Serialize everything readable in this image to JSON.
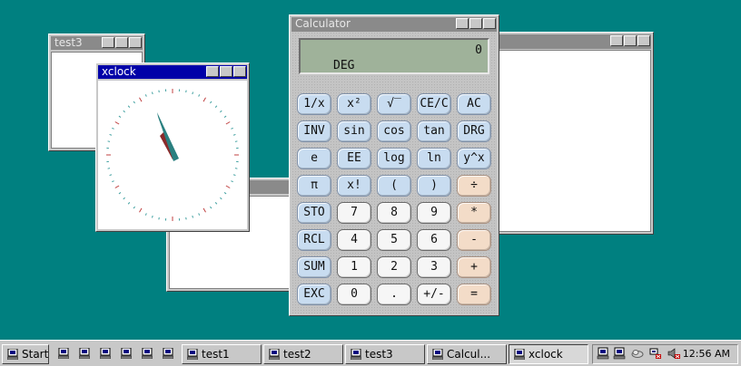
{
  "desktop": {
    "background": "#008080"
  },
  "windows": {
    "test3": {
      "title": "test3"
    },
    "xclock": {
      "title": "xclock"
    },
    "calculator": {
      "title": "Calculator"
    },
    "right_window": {
      "title": ""
    },
    "bottom_window": {
      "title": ""
    }
  },
  "calculator": {
    "display_value": "0",
    "display_mode": "DEG",
    "keys": [
      [
        "1/x",
        "x²",
        "√‾",
        "CE/C",
        "AC"
      ],
      [
        "INV",
        "sin",
        "cos",
        "tan",
        "DRG"
      ],
      [
        "e",
        "EE",
        "log",
        "ln",
        "y^x"
      ],
      [
        "π",
        "x!",
        "(",
        ")",
        "÷"
      ],
      [
        "STO",
        "7",
        "8",
        "9",
        "*"
      ],
      [
        "RCL",
        "4",
        "5",
        "6",
        "-"
      ],
      [
        "SUM",
        "1",
        "2",
        "3",
        "+"
      ],
      [
        "EXC",
        "0",
        ".",
        "+/-",
        "="
      ]
    ]
  },
  "taskbar": {
    "start_label": "Start",
    "quick_launch_icons": [
      "computer-icon",
      "computer-icon",
      "computer-icon",
      "computer-icon",
      "computer-icon",
      "computer-icon"
    ],
    "tasks": [
      {
        "label": "test1"
      },
      {
        "label": "test2"
      },
      {
        "label": "test3"
      },
      {
        "label": "Calcul..."
      },
      {
        "label": "xclock"
      }
    ],
    "tray_icons": [
      "computer-icon",
      "computer-icon",
      "weather-icon",
      "network-disconnected-icon",
      "volume-muted-icon"
    ],
    "clock": "12:56 AM"
  }
}
